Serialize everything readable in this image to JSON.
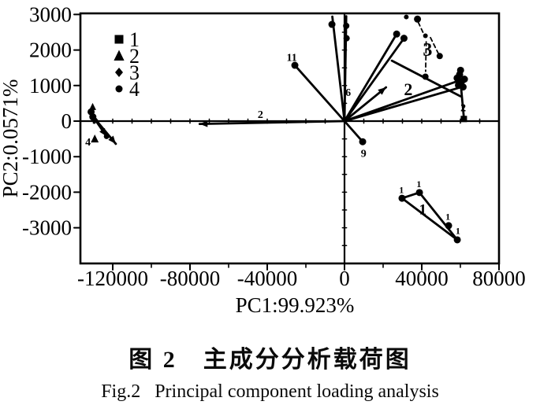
{
  "page": {
    "background": "#ffffff",
    "ink": "#000000"
  },
  "captions": {
    "chinese": "图 2　主成分分析载荷图",
    "english": "Fig.2   Principal component loading analysis"
  },
  "chart_data": {
    "type": "scatter",
    "title": "",
    "xlabel": "PC1:99.923%",
    "ylabel": "PC2:0.0571%",
    "xlim": [
      -136500,
      80000
    ],
    "ylim": [
      -4000,
      3030
    ],
    "grid": false,
    "origin_axes": true,
    "x_ticks": [
      -120000,
      -80000,
      -40000,
      0,
      40000,
      80000
    ],
    "x_minor_ticks": [
      -100000,
      -60000,
      -20000,
      20000,
      60000
    ],
    "y_ticks": [
      3000,
      2000,
      1000,
      0,
      -1000,
      -2000,
      -3000
    ],
    "legend": {
      "position": "upper-left",
      "items": [
        {
          "marker": "square",
          "label": "1"
        },
        {
          "marker": "triangle",
          "label": "2"
        },
        {
          "marker": "diamond",
          "label": "3"
        },
        {
          "marker": "circle",
          "label": "4"
        }
      ]
    },
    "vectors": [
      {
        "x1": 0,
        "y1": 0,
        "x2": -75000,
        "y2": -80,
        "arrow": true
      },
      {
        "x1": 0,
        "y1": 0,
        "x2": -25700,
        "y2": 1570,
        "arrow": false
      },
      {
        "x1": 0,
        "y1": 0,
        "x2": -6300,
        "y2": 2940,
        "arrow": false
      },
      {
        "x1": 0,
        "y1": 0,
        "x2": 900,
        "y2": 2950,
        "arrow": false
      },
      {
        "x1": 0,
        "y1": 0,
        "x2": 27000,
        "y2": 2450,
        "arrow": false
      },
      {
        "x1": 0,
        "y1": 0,
        "x2": 30800,
        "y2": 2330,
        "arrow": false
      },
      {
        "x1": 24500,
        "y1": 1700,
        "x2": 60000,
        "y2": 700,
        "arrow": false
      },
      {
        "x1": 0,
        "y1": 0,
        "x2": 21500,
        "y2": 950,
        "arrow": true
      },
      {
        "x1": 0,
        "y1": 0,
        "x2": 59800,
        "y2": 1150,
        "arrow": false
      },
      {
        "x1": 0,
        "y1": 0,
        "x2": 62000,
        "y2": 980,
        "arrow": false
      },
      {
        "x1": 60000,
        "y1": 1150,
        "x2": 61800,
        "y2": 100,
        "arrow": false
      },
      {
        "x1": 0,
        "y1": 0,
        "x2": 9400,
        "y2": -580,
        "arrow": false
      },
      {
        "x1": -130500,
        "y1": 150,
        "x2": -118400,
        "y2": -640,
        "arrow": true
      },
      {
        "x1": -130500,
        "y1": 150,
        "x2": -123200,
        "y2": -430,
        "arrow": true
      },
      {
        "x1": 29800,
        "y1": -2170,
        "x2": 38800,
        "y2": -2010,
        "arrow": false
      },
      {
        "x1": 29800,
        "y1": -2170,
        "x2": 58400,
        "y2": -3340,
        "arrow": false
      },
      {
        "x1": 38800,
        "y1": -2010,
        "x2": 58400,
        "y2": -3340,
        "arrow": false
      }
    ],
    "dashed_segments": [
      {
        "x1": 38200,
        "y1": 2780,
        "x2": 41200,
        "y2": 2430
      },
      {
        "x1": 42300,
        "y1": 2230,
        "x2": 42000,
        "y2": 1400
      },
      {
        "x1": 44500,
        "y1": 2350,
        "x2": 48800,
        "y2": 1880
      }
    ],
    "points": [
      {
        "x": -25700,
        "y": 1570,
        "marker": "circle",
        "r": 4.5
      },
      {
        "x": -6500,
        "y": 2720,
        "marker": "circle",
        "r": 4.5
      },
      {
        "x": 900,
        "y": 2680,
        "marker": "circle",
        "r": 4
      },
      {
        "x": 1100,
        "y": 2330,
        "marker": "circle",
        "r": 4
      },
      {
        "x": 27000,
        "y": 2450,
        "marker": "circle",
        "r": 4.5
      },
      {
        "x": 30800,
        "y": 2330,
        "marker": "circle",
        "r": 4.5
      },
      {
        "x": 32000,
        "y": 2930,
        "marker": "circle",
        "r": 3
      },
      {
        "x": 37800,
        "y": 2870,
        "marker": "circle",
        "r": 4.5
      },
      {
        "x": 41900,
        "y": 2400,
        "marker": "circle",
        "r": 3
      },
      {
        "x": 41900,
        "y": 1250,
        "marker": "circle",
        "r": 4
      },
      {
        "x": 49300,
        "y": 1830,
        "marker": "circle",
        "r": 4
      },
      {
        "x": 58300,
        "y": 1210,
        "marker": "circle",
        "r": 4.5
      },
      {
        "x": 59600,
        "y": 1310,
        "marker": "circle",
        "r": 4.5
      },
      {
        "x": 60700,
        "y": 1120,
        "marker": "circle",
        "r": 4.5
      },
      {
        "x": 59000,
        "y": 1010,
        "marker": "circle",
        "r": 4.5
      },
      {
        "x": 61400,
        "y": 960,
        "marker": "circle",
        "r": 4.5
      },
      {
        "x": 60100,
        "y": 1430,
        "marker": "circle",
        "r": 4.5
      },
      {
        "x": 62100,
        "y": 1180,
        "marker": "circle",
        "r": 4.5
      },
      {
        "x": 61800,
        "y": 60,
        "marker": "square",
        "r": 4
      },
      {
        "x": 9400,
        "y": -580,
        "marker": "circle",
        "r": 4.5
      },
      {
        "x": 29800,
        "y": -2170,
        "marker": "circle",
        "r": 4.5
      },
      {
        "x": 38800,
        "y": -2010,
        "marker": "circle",
        "r": 4.5
      },
      {
        "x": 53900,
        "y": -2940,
        "marker": "circle",
        "r": 4.5
      },
      {
        "x": 58400,
        "y": -3340,
        "marker": "circle",
        "r": 4.5
      },
      {
        "x": -131200,
        "y": 260,
        "marker": "circle",
        "r": 4.5
      },
      {
        "x": -130300,
        "y": 120,
        "marker": "circle",
        "r": 4.5
      },
      {
        "x": -129400,
        "y": 30,
        "marker": "diamond",
        "r": 4.5
      },
      {
        "x": -130400,
        "y": 400,
        "marker": "triangle",
        "r": 4
      },
      {
        "x": -123200,
        "y": -430,
        "marker": "circle",
        "r": 3.5
      },
      {
        "x": -129300,
        "y": -500,
        "marker": "triangle",
        "r": 4.5
      }
    ],
    "annotations": [
      {
        "x": -43500,
        "y": 200,
        "text": "2",
        "size": 14
      },
      {
        "x": -27300,
        "y": 1800,
        "text": "11",
        "size": 14
      },
      {
        "x": 9900,
        "y": -900,
        "text": "9",
        "size": 14
      },
      {
        "x": 1900,
        "y": 820,
        "text": "6",
        "size": 14
      },
      {
        "x": 33000,
        "y": 900,
        "text": "2",
        "size": 22
      },
      {
        "x": 43000,
        "y": 2020,
        "text": "3",
        "size": 24
      },
      {
        "x": 61500,
        "y": 380,
        "text": "2",
        "size": 14
      },
      {
        "x": 29500,
        "y": -1930,
        "text": "1",
        "size": 12
      },
      {
        "x": 38500,
        "y": -1770,
        "text": "1",
        "size": 12
      },
      {
        "x": 53500,
        "y": -2680,
        "text": "1",
        "size": 12
      },
      {
        "x": 58700,
        "y": -3080,
        "text": "1",
        "size": 12
      },
      {
        "x": 40500,
        "y": -2480,
        "text": "1",
        "size": 19
      },
      {
        "x": -132800,
        "y": -580,
        "text": "4",
        "size": 14
      }
    ]
  }
}
